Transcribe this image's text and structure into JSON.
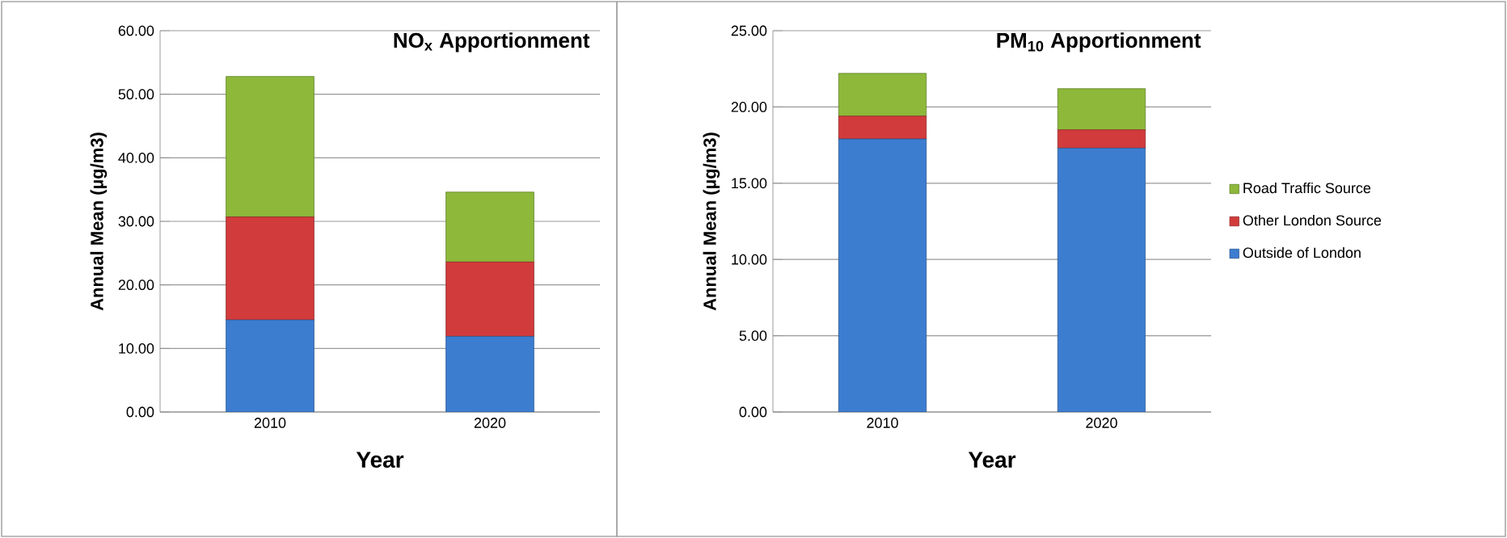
{
  "chart_data": [
    {
      "type": "bar",
      "stacked": true,
      "title": "NO$_{x}$ Apportionment",
      "xlabel": "Year",
      "ylabel": "Annual Mean (µg/m3)",
      "categories": [
        "2010",
        "2020"
      ],
      "series": [
        {
          "color": "#3c7dd0",
          "values": [
            14.5,
            11.9
          ]
        },
        {
          "color": "#d23b3b",
          "values": [
            16.2,
            11.7
          ]
        },
        {
          "color": "#8db83a",
          "values": [
            22.1,
            11.0
          ]
        }
      ],
      "ylim": [
        0,
        60
      ],
      "yticks": [
        {
          "value": 0,
          "label": "0.00"
        },
        {
          "value": 10,
          "label": "10.00"
        },
        {
          "value": 20,
          "label": "20.00"
        },
        {
          "value": 30,
          "label": "30.00"
        },
        {
          "value": 40,
          "label": "40.00"
        },
        {
          "value": 50,
          "label": "50.00"
        },
        {
          "value": 60,
          "label": "60.00"
        }
      ],
      "grid": "y",
      "legend": false
    },
    {
      "type": "bar",
      "stacked": true,
      "title": "PM$_{10}$ Apportionment",
      "xlabel": "Year",
      "ylabel": "Annual Mean (µg/m3)",
      "categories": [
        "2010",
        "2020"
      ],
      "series": [
        {
          "name": "Outside of London",
          "color": "#3c7dd0",
          "values": [
            17.9,
            17.3
          ]
        },
        {
          "name": "Other London Source",
          "color": "#d23b3b",
          "values": [
            1.5,
            1.2
          ]
        },
        {
          "name": "Road Traffic Source",
          "color": "#8db83a",
          "values": [
            2.8,
            2.7
          ]
        }
      ],
      "ylim": [
        0,
        25
      ],
      "yticks": [
        {
          "value": 0,
          "label": "0.00"
        },
        {
          "value": 5,
          "label": "5.00"
        },
        {
          "value": 10,
          "label": "10.00"
        },
        {
          "value": 15,
          "label": "15.00"
        },
        {
          "value": 20,
          "label": "20.00"
        },
        {
          "value": 25,
          "label": "25.00"
        }
      ],
      "grid": "y",
      "legend": "right"
    }
  ]
}
